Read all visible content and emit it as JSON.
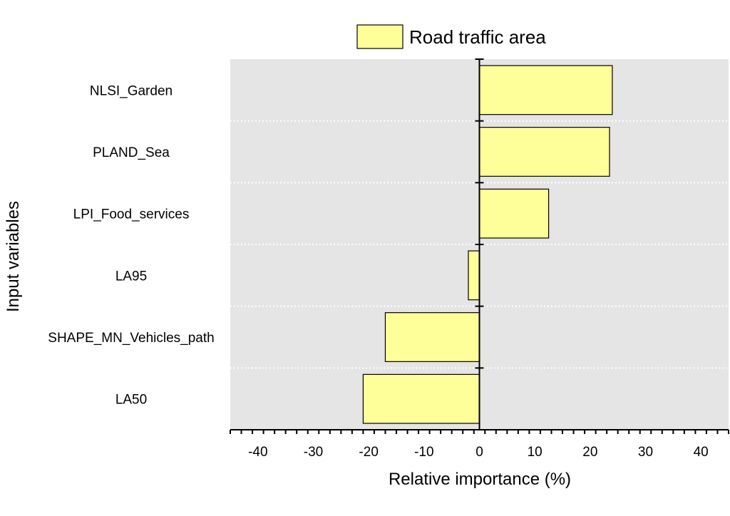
{
  "chart_data": {
    "type": "bar",
    "orientation": "horizontal",
    "categories": [
      "NLSI_Garden",
      "PLAND_Sea",
      "LPI_Food_services",
      "LA95",
      "SHAPE_MN_Vehicles_path",
      "LA50"
    ],
    "series": [
      {
        "name": "Road traffic area",
        "values": [
          24,
          23.5,
          12.5,
          -2,
          -17,
          -21
        ],
        "color": "#ffff99"
      }
    ],
    "xlabel": "Relative importance (%)",
    "ylabel": "Input variables",
    "xlim": [
      -45,
      45
    ],
    "xticks": [
      -40,
      -30,
      -20,
      -10,
      0,
      10,
      20,
      30,
      40
    ],
    "legend_position": "top-center",
    "plot_background": "#e5e5e5",
    "grid": "horizontal dotted separators"
  }
}
